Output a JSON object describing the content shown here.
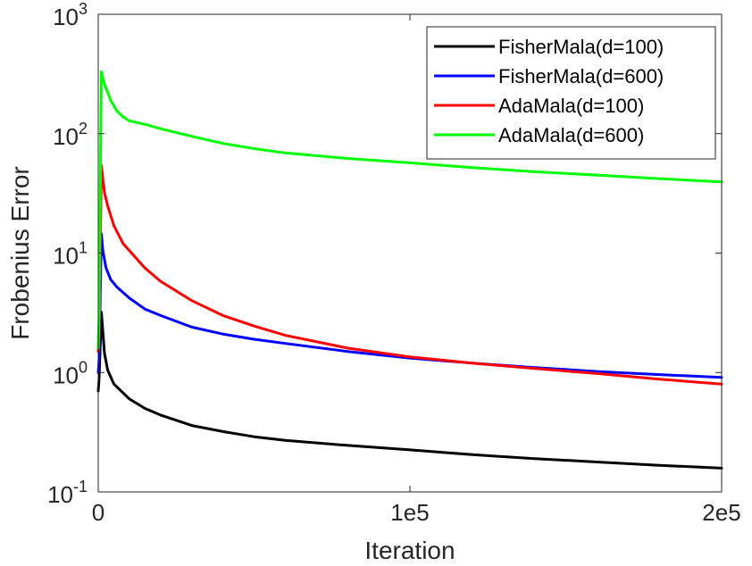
{
  "chart_data": {
    "type": "line",
    "title": "",
    "xlabel": "Iteration",
    "ylabel": "Frobenius Error",
    "xlim": [
      0,
      200000
    ],
    "ylim": [
      0.1,
      1000
    ],
    "yscale": "log",
    "x_ticks": [
      {
        "value": 0,
        "label": "0"
      },
      {
        "value": 100000,
        "label": "1e5"
      },
      {
        "value": 200000,
        "label": "2e5"
      }
    ],
    "y_ticks": [
      {
        "value": 0.1,
        "base": "10",
        "exp": "-1"
      },
      {
        "value": 1,
        "base": "10",
        "exp": "0"
      },
      {
        "value": 10,
        "base": "10",
        "exp": "1"
      },
      {
        "value": 100,
        "base": "10",
        "exp": "2"
      },
      {
        "value": 1000,
        "base": "10",
        "exp": "3"
      }
    ],
    "legend_position": "top-right",
    "series": [
      {
        "name": "FisherMala(d=100)",
        "color": "#000000",
        "x": [
          0,
          300,
          1000,
          2000,
          3000,
          5000,
          10000,
          15000,
          20000,
          30000,
          40000,
          50000,
          60000,
          80000,
          100000,
          120000,
          140000,
          160000,
          180000,
          200000
        ],
        "y": [
          0.7,
          0.9,
          3.2,
          1.45,
          1.05,
          0.8,
          0.6,
          0.5,
          0.44,
          0.36,
          0.32,
          0.29,
          0.27,
          0.245,
          0.225,
          0.205,
          0.19,
          0.178,
          0.167,
          0.158
        ]
      },
      {
        "name": "FisherMala(d=600)",
        "color": "#0000ff",
        "x": [
          0,
          300,
          1000,
          1500,
          2500,
          4000,
          6000,
          10000,
          15000,
          20000,
          30000,
          40000,
          50000,
          60000,
          80000,
          100000,
          120000,
          140000,
          160000,
          180000,
          200000
        ],
        "y": [
          1.0,
          1.3,
          14.5,
          10.5,
          7.5,
          6.0,
          5.2,
          4.2,
          3.4,
          3.0,
          2.4,
          2.1,
          1.9,
          1.75,
          1.5,
          1.32,
          1.2,
          1.1,
          1.02,
          0.96,
          0.91
        ]
      },
      {
        "name": "AdaMala(d=100)",
        "color": "#ff0000",
        "x": [
          0,
          300,
          1000,
          2000,
          3000,
          5000,
          8000,
          10000,
          15000,
          20000,
          30000,
          40000,
          50000,
          60000,
          80000,
          100000,
          120000,
          140000,
          160000,
          180000,
          200000
        ],
        "y": [
          1.5,
          2.0,
          54,
          32,
          25,
          17,
          12,
          10.5,
          7.5,
          5.8,
          4.0,
          3.0,
          2.45,
          2.05,
          1.6,
          1.35,
          1.2,
          1.08,
          0.98,
          0.88,
          0.8
        ]
      },
      {
        "name": "AdaMala(d=600)",
        "color": "#00ff00",
        "x": [
          0,
          300,
          1000,
          2000,
          4000,
          6000,
          8000,
          10000,
          15000,
          20000,
          30000,
          40000,
          50000,
          60000,
          80000,
          100000,
          120000,
          140000,
          160000,
          180000,
          200000
        ],
        "y": [
          1.6,
          3.0,
          330,
          260,
          190,
          155,
          138,
          128,
          120,
          110,
          95,
          83,
          75,
          69,
          62,
          57,
          52,
          48,
          45,
          42,
          39.5
        ]
      }
    ]
  }
}
